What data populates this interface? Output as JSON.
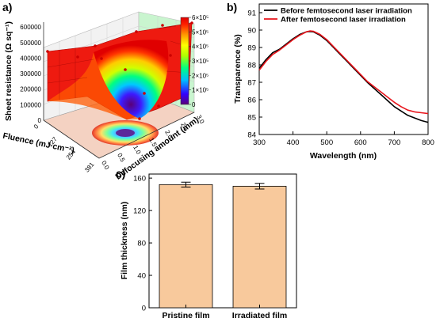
{
  "chart_data": [
    {
      "panel": "a)",
      "type": "surface3d",
      "xlabel": "Fluence (mJ cm⁻²)",
      "ylabel": "Defocusing amount (mm)",
      "zlabel": "Sheet resistance (Ω sq⁻¹)",
      "x_ticks": [
        "0",
        "127",
        "254",
        "381"
      ],
      "y_ticks": [
        "0.0",
        "0.5",
        "1.0",
        "1.5",
        "2.0",
        "2.5",
        "3.0"
      ],
      "z_ticks": [
        "0",
        "100000",
        "200000",
        "300000",
        "400000",
        "500000",
        "600000"
      ],
      "colorbar": {
        "ticks": [
          "0",
          "1×10⁵",
          "2×10⁵",
          "3×10⁵",
          "4×10⁵",
          "5×10⁵",
          "6×10⁵"
        ],
        "colors": [
          "#5a0078",
          "#3300ff",
          "#00bfff",
          "#00ff80",
          "#b0ff00",
          "#ffff00",
          "#ff9900",
          "#ff2000",
          "#e00000"
        ]
      }
    },
    {
      "panel": "b)",
      "type": "line",
      "xlabel": "Wavelength (nm)",
      "ylabel": "Transparence (%)",
      "xlim": [
        300,
        800
      ],
      "ylim": [
        84,
        91.5
      ],
      "x_ticks": [
        300,
        400,
        500,
        600,
        700,
        800
      ],
      "y_ticks": [
        84,
        85,
        86,
        87,
        88,
        89,
        90,
        91
      ],
      "legend": "top-right",
      "series": [
        {
          "name": "Before femtosecond laser irradiation",
          "color": "#000000",
          "x": [
            300,
            320,
            340,
            360,
            380,
            400,
            420,
            440,
            450,
            460,
            480,
            500,
            520,
            540,
            560,
            580,
            600,
            620,
            640,
            660,
            680,
            700,
            720,
            740,
            760,
            780,
            800
          ],
          "y": [
            87.8,
            88.3,
            88.7,
            88.9,
            89.2,
            89.5,
            89.75,
            89.9,
            89.92,
            89.9,
            89.7,
            89.4,
            89.0,
            88.6,
            88.2,
            87.8,
            87.4,
            87.0,
            86.65,
            86.3,
            85.95,
            85.6,
            85.35,
            85.1,
            84.95,
            84.8,
            84.7
          ]
        },
        {
          "name": "After femtosecond laser irradiation",
          "color": "#e8141b",
          "x": [
            300,
            320,
            340,
            360,
            380,
            400,
            420,
            440,
            450,
            460,
            480,
            500,
            520,
            540,
            560,
            580,
            600,
            620,
            640,
            660,
            680,
            700,
            720,
            740,
            760,
            780,
            800
          ],
          "y": [
            87.7,
            88.2,
            88.6,
            88.85,
            89.15,
            89.45,
            89.7,
            89.9,
            89.95,
            89.93,
            89.75,
            89.45,
            89.05,
            88.65,
            88.25,
            87.85,
            87.45,
            87.05,
            86.75,
            86.45,
            86.15,
            85.85,
            85.6,
            85.4,
            85.3,
            85.25,
            85.2
          ]
        }
      ]
    },
    {
      "panel": "c)",
      "type": "bar",
      "categories": [
        "Pristine film",
        "Irradiated film"
      ],
      "values": [
        152,
        150
      ],
      "errors": [
        3,
        3.5
      ],
      "ylabel": "Film thickness (nm)",
      "ylim": [
        0,
        165
      ],
      "y_ticks": [
        0,
        40,
        80,
        120,
        160
      ],
      "bar_color": "#f8c99c"
    }
  ]
}
